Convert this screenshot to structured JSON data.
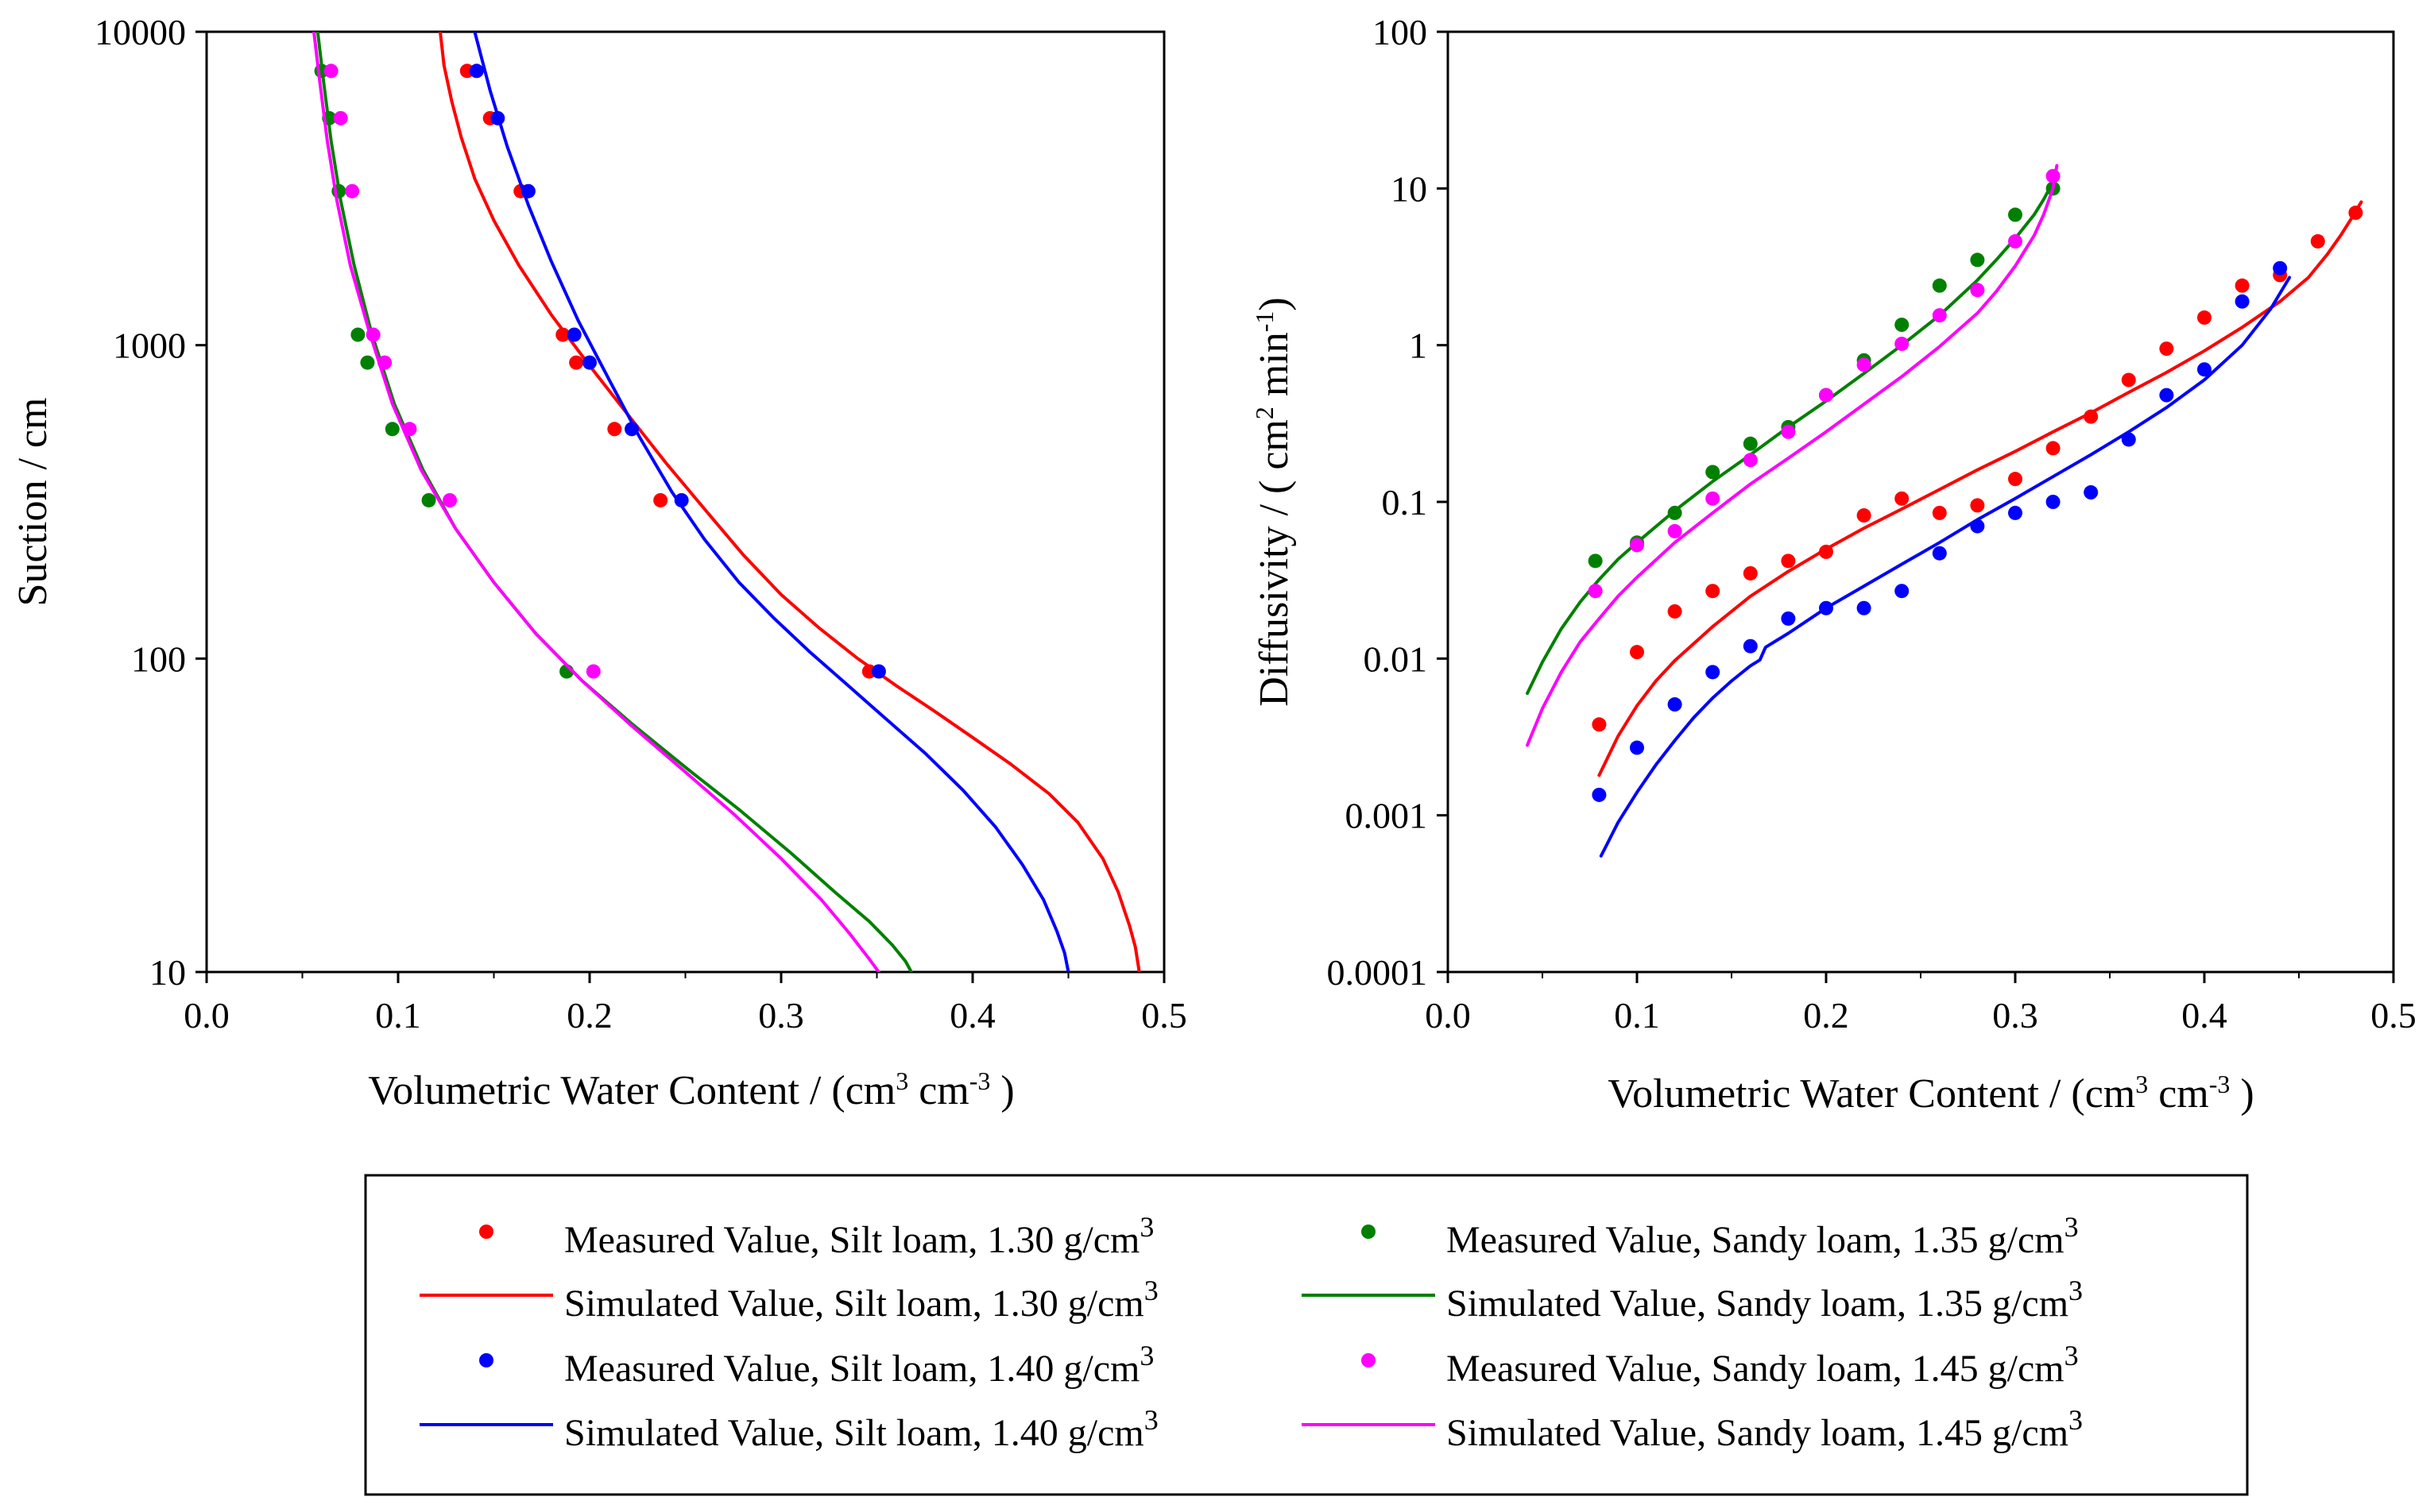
{
  "chart_data": [
    {
      "type": "scatter",
      "panel": "left",
      "title": "",
      "xlabel": {
        "main": "Volumetric Water Content / (cm",
        "sup1": "3",
        "mid": " cm",
        "sup2": "-3",
        "end": " )"
      },
      "ylabel": "Suction / cm",
      "xlim": [
        0,
        0.5
      ],
      "ylim": [
        10,
        10000
      ],
      "yscale": "log",
      "x_ticks": [
        0,
        0.1,
        0.2,
        0.3,
        0.4,
        0.5
      ],
      "x_tick_labels": [
        "0.0",
        "0.1",
        "0.2",
        "0.3",
        "0.4",
        "0.5"
      ],
      "y_ticks": [
        10,
        100,
        1000,
        10000
      ],
      "y_tick_labels": [
        "10",
        "100",
        "1000",
        "10000"
      ],
      "grid": false,
      "series": [
        {
          "name": "Measured Value, Silt loam, 1.30 g/cm3",
          "kind": "points",
          "color": "#ff0000",
          "x": [
            0.136,
            0.148,
            0.164,
            0.186,
            0.193,
            0.213,
            0.237,
            0.346
          ],
          "y": [
            7500,
            5300,
            3100,
            1080,
            880,
            540,
            320,
            91
          ]
        },
        {
          "name": "Simulated Value, Silt loam, 1.30 g/cm3",
          "kind": "line",
          "color": "#ff0000",
          "x": [
            0.122,
            0.124,
            0.128,
            0.133,
            0.14,
            0.15,
            0.163,
            0.18,
            0.2,
            0.22,
            0.24,
            0.26,
            0.28,
            0.3,
            0.32,
            0.34,
            0.36,
            0.38,
            0.4,
            0.42,
            0.44,
            0.455,
            0.468,
            0.476,
            0.482,
            0.485,
            0.487
          ],
          "y": [
            10000,
            7800,
            6000,
            4600,
            3400,
            2500,
            1800,
            1250,
            860,
            600,
            420,
            300,
            215,
            160,
            125,
            100,
            82,
            68,
            56,
            46,
            37,
            30,
            23,
            18,
            14,
            12,
            10
          ]
        },
        {
          "name": "Measured Value, Silt loam, 1.40 g/cm3",
          "kind": "points",
          "color": "#0000ff",
          "x": [
            0.141,
            0.152,
            0.168,
            0.192,
            0.2,
            0.222,
            0.248,
            0.351
          ],
          "y": [
            7500,
            5300,
            3100,
            1080,
            880,
            540,
            320,
            91
          ]
        },
        {
          "name": "Simulated Value, Silt loam, 1.40 g/cm3",
          "kind": "line",
          "color": "#0000ff",
          "x": [
            0.14,
            0.148,
            0.157,
            0.168,
            0.18,
            0.194,
            0.21,
            0.226,
            0.243,
            0.26,
            0.278,
            0.296,
            0.315,
            0.335,
            0.355,
            0.375,
            0.395,
            0.412,
            0.426,
            0.437,
            0.444,
            0.448,
            0.45
          ],
          "y": [
            10000,
            6500,
            4300,
            2800,
            1850,
            1200,
            780,
            510,
            340,
            240,
            175,
            135,
            105,
            82,
            64,
            50,
            38,
            29,
            22,
            17,
            13.5,
            11.5,
            10
          ]
        },
        {
          "name": "Measured Value, Sandy loam, 1.35 g/cm3",
          "kind": "points",
          "color": "#008000",
          "x": [
            0.06,
            0.064,
            0.069,
            0.079,
            0.084,
            0.097,
            0.116,
            0.188
          ],
          "y": [
            7500,
            5300,
            3100,
            1080,
            880,
            540,
            320,
            91
          ]
        },
        {
          "name": "Simulated Value, Sandy loam, 1.35 g/cm3",
          "kind": "line",
          "color": "#008000",
          "x": [
            0.058,
            0.061,
            0.065,
            0.07,
            0.077,
            0.086,
            0.098,
            0.113,
            0.13,
            0.15,
            0.172,
            0.196,
            0.222,
            0.25,
            0.278,
            0.305,
            0.328,
            0.346,
            0.358,
            0.365,
            0.368
          ],
          "y": [
            10000,
            7000,
            4500,
            2900,
            1800,
            1100,
            650,
            400,
            260,
            175,
            120,
            85,
            62,
            45,
            33,
            24,
            18,
            14.5,
            12.2,
            10.8,
            10
          ]
        },
        {
          "name": "Measured Value, Sandy loam, 1.45 g/cm3",
          "kind": "points",
          "color": "#ff00ff",
          "x": [
            0.065,
            0.07,
            0.076,
            0.087,
            0.093,
            0.106,
            0.127,
            0.202
          ],
          "y": [
            7500,
            5300,
            3100,
            1080,
            880,
            540,
            320,
            91
          ]
        },
        {
          "name": "Simulated Value, Sandy loam, 1.45 g/cm3",
          "kind": "line",
          "color": "#ff00ff",
          "x": [
            0.056,
            0.059,
            0.063,
            0.068,
            0.075,
            0.085,
            0.097,
            0.112,
            0.13,
            0.15,
            0.172,
            0.196,
            0.222,
            0.249,
            0.275,
            0.3,
            0.321,
            0.336,
            0.346,
            0.351
          ],
          "y": [
            10000,
            7000,
            4500,
            2900,
            1800,
            1100,
            650,
            400,
            260,
            175,
            120,
            85,
            61,
            44,
            32,
            23,
            17,
            13.2,
            11,
            10
          ]
        }
      ]
    },
    {
      "type": "scatter",
      "panel": "right",
      "title": "",
      "xlabel": {
        "main": "Volumetric Water Content / (cm",
        "sup1": "3",
        "mid": " cm",
        "sup2": "-3",
        "end": " )"
      },
      "ylabel": {
        "main": "Diffusivity / ( cm",
        "sup1": "2",
        "mid": " min",
        "sup2": "-1",
        "end": ")"
      },
      "xlim": [
        0,
        0.5
      ],
      "ylim": [
        0.0001,
        100
      ],
      "yscale": "log",
      "x_ticks": [
        0,
        0.1,
        0.2,
        0.3,
        0.4,
        0.5
      ],
      "x_tick_labels": [
        "0.0",
        "0.1",
        "0.2",
        "0.3",
        "0.4",
        "0.5"
      ],
      "y_ticks": [
        0.0001,
        0.001,
        0.01,
        0.1,
        1,
        10,
        100
      ],
      "y_tick_labels": [
        "0.0001",
        "0.001",
        "0.01",
        "0.1",
        "1",
        "10",
        "100"
      ],
      "grid": false,
      "series": [
        {
          "name": "Measured Value, Silt loam, 1.30 g/cm3",
          "kind": "points",
          "color": "#ff0000",
          "x": [
            0.08,
            0.1,
            0.12,
            0.14,
            0.16,
            0.18,
            0.2,
            0.22,
            0.24,
            0.26,
            0.28,
            0.3,
            0.32,
            0.34,
            0.36,
            0.38,
            0.4,
            0.42,
            0.44,
            0.46,
            0.48
          ],
          "y": [
            0.0038,
            0.011,
            0.02,
            0.027,
            0.035,
            0.042,
            0.048,
            0.082,
            0.105,
            0.085,
            0.095,
            0.14,
            0.22,
            0.35,
            0.6,
            0.95,
            1.5,
            2.4,
            2.8,
            4.6,
            7
          ]
        },
        {
          "name": "Simulated Value, Silt loam, 1.30 g/cm3",
          "kind": "line",
          "color": "#ff0000",
          "x": [
            0.08,
            0.09,
            0.1,
            0.11,
            0.12,
            0.14,
            0.16,
            0.18,
            0.2,
            0.22,
            0.24,
            0.26,
            0.28,
            0.3,
            0.32,
            0.34,
            0.36,
            0.38,
            0.4,
            0.42,
            0.44,
            0.455,
            0.465,
            0.472,
            0.478,
            0.483
          ],
          "y": [
            0.0018,
            0.0032,
            0.005,
            0.0072,
            0.0097,
            0.016,
            0.025,
            0.036,
            0.05,
            0.068,
            0.09,
            0.12,
            0.16,
            0.21,
            0.28,
            0.37,
            0.5,
            0.67,
            0.92,
            1.3,
            1.9,
            2.7,
            3.8,
            5,
            6.5,
            8.2
          ]
        },
        {
          "name": "Measured Value, Silt loam, 1.40 g/cm3",
          "kind": "points",
          "color": "#0000ff",
          "x": [
            0.08,
            0.1,
            0.12,
            0.14,
            0.16,
            0.18,
            0.2,
            0.22,
            0.24,
            0.26,
            0.28,
            0.3,
            0.32,
            0.34,
            0.36,
            0.38,
            0.4,
            0.42,
            0.44
          ],
          "y": [
            0.00135,
            0.0027,
            0.0051,
            0.0082,
            0.012,
            0.018,
            0.021,
            0.021,
            0.027,
            0.047,
            0.07,
            0.085,
            0.1,
            0.115,
            0.25,
            0.48,
            0.7,
            1.9,
            3.1
          ]
        },
        {
          "name": "Simulated Value, Silt loam, 1.40 g/cm3",
          "kind": "line",
          "color": "#0000ff",
          "x": [
            0.081,
            0.09,
            0.1,
            0.11,
            0.12,
            0.13,
            0.14,
            0.15,
            0.16,
            0.165,
            0.168,
            0.18,
            0.2,
            0.22,
            0.24,
            0.26,
            0.28,
            0.3,
            0.32,
            0.34,
            0.36,
            0.38,
            0.4,
            0.42,
            0.435,
            0.445
          ],
          "y": [
            0.00055,
            0.0009,
            0.0014,
            0.0021,
            0.003,
            0.0042,
            0.0056,
            0.0072,
            0.009,
            0.0098,
            0.0118,
            0.0145,
            0.021,
            0.029,
            0.04,
            0.055,
            0.077,
            0.105,
            0.145,
            0.2,
            0.28,
            0.4,
            0.6,
            1.0,
            1.7,
            2.7
          ]
        },
        {
          "name": "Measured Value, Sandy loam, 1.35 g/cm3",
          "kind": "points",
          "color": "#008000",
          "x": [
            0.078,
            0.1,
            0.12,
            0.14,
            0.16,
            0.18,
            0.2,
            0.22,
            0.24,
            0.26,
            0.28,
            0.3,
            0.32
          ],
          "y": [
            0.042,
            0.055,
            0.085,
            0.155,
            0.235,
            0.3,
            0.48,
            0.8,
            1.35,
            2.4,
            3.5,
            6.8,
            10
          ]
        },
        {
          "name": "Simulated Value, Sandy loam, 1.35 g/cm3",
          "kind": "line",
          "color": "#008000",
          "x": [
            0.042,
            0.05,
            0.06,
            0.07,
            0.08,
            0.09,
            0.1,
            0.12,
            0.14,
            0.16,
            0.18,
            0.2,
            0.22,
            0.24,
            0.26,
            0.28,
            0.29,
            0.3,
            0.31,
            0.315,
            0.32
          ],
          "y": [
            0.006,
            0.0095,
            0.0155,
            0.023,
            0.032,
            0.043,
            0.055,
            0.088,
            0.135,
            0.2,
            0.3,
            0.44,
            0.66,
            1.0,
            1.55,
            2.6,
            3.5,
            4.8,
            6.8,
            8.5,
            11
          ]
        },
        {
          "name": "Measured Value, Sandy loam, 1.45 g/cm3",
          "kind": "points",
          "color": "#ff00ff",
          "x": [
            0.078,
            0.1,
            0.12,
            0.14,
            0.16,
            0.18,
            0.2,
            0.22,
            0.24,
            0.26,
            0.28,
            0.3,
            0.32
          ],
          "y": [
            0.027,
            0.053,
            0.065,
            0.105,
            0.185,
            0.28,
            0.48,
            0.75,
            1.02,
            1.55,
            2.25,
            4.6,
            12
          ]
        },
        {
          "name": "Simulated Value, Sandy loam, 1.45 g/cm3",
          "kind": "line",
          "color": "#ff00ff",
          "x": [
            0.042,
            0.05,
            0.06,
            0.07,
            0.08,
            0.09,
            0.1,
            0.12,
            0.14,
            0.16,
            0.18,
            0.2,
            0.22,
            0.24,
            0.26,
            0.28,
            0.29,
            0.3,
            0.31,
            0.315,
            0.32,
            0.322
          ],
          "y": [
            0.0028,
            0.0048,
            0.0082,
            0.0128,
            0.018,
            0.025,
            0.033,
            0.055,
            0.085,
            0.13,
            0.19,
            0.28,
            0.42,
            0.63,
            0.98,
            1.6,
            2.2,
            3.2,
            5.0,
            6.8,
            10,
            14
          ]
        }
      ]
    }
  ],
  "legend": {
    "placement": "bottom",
    "sup": "3",
    "entries": [
      {
        "label": "Measured Value, Silt loam, 1.30 g/cm",
        "kind": "points",
        "color": "#ff0000"
      },
      {
        "label": "Measured Value, Sandy loam, 1.35 g/cm",
        "kind": "points",
        "color": "#008000"
      },
      {
        "label": "Simulated Value, Silt loam, 1.30 g/cm",
        "kind": "line",
        "color": "#ff0000"
      },
      {
        "label": "Simulated Value, Sandy loam, 1.35 g/cm",
        "kind": "line",
        "color": "#008000"
      },
      {
        "label": "Measured Value, Silt loam, 1.40 g/cm",
        "kind": "points",
        "color": "#0000ff"
      },
      {
        "label": "Measured Value, Sandy loam, 1.45 g/cm",
        "kind": "points",
        "color": "#ff00ff"
      },
      {
        "label": "Simulated Value, Silt loam, 1.40 g/cm",
        "kind": "line",
        "color": "#0000ff"
      },
      {
        "label": "Simulated Value, Sandy loam, 1.45 g/cm",
        "kind": "line",
        "color": "#ff00ff"
      }
    ]
  }
}
